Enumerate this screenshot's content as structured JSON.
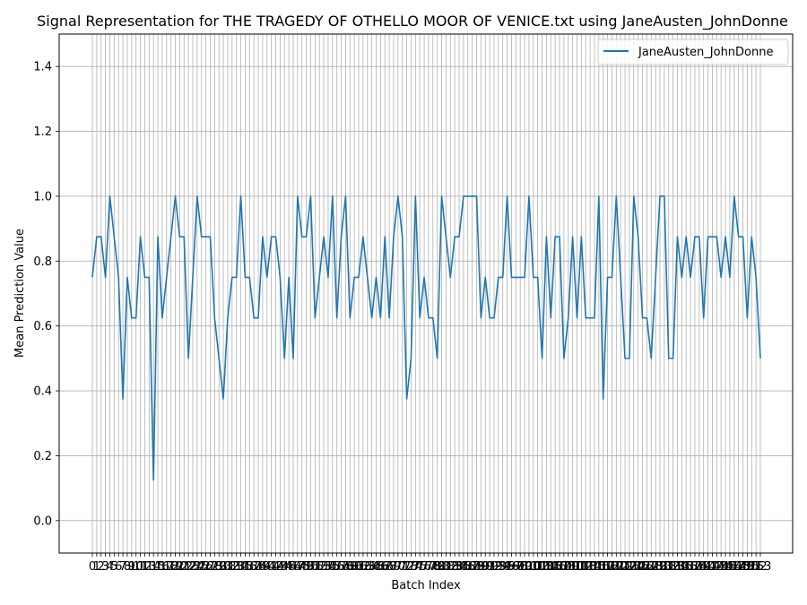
{
  "chart_data": {
    "type": "line",
    "title": "Signal Representation for THE TRAGEDY OF OTHELLO MOOR OF VENICE.txt using JaneAusten_JohnDonne",
    "xlabel": "Batch Index",
    "ylabel": "Mean Prediction Value",
    "ylim": [
      -0.1,
      1.5
    ],
    "yticks": [
      0.0,
      0.2,
      0.4,
      0.6,
      0.8,
      1.0,
      1.2,
      1.4
    ],
    "grid": true,
    "legend_position": "top-right",
    "series": [
      {
        "name": "JaneAusten_JohnDonne",
        "color": "#1f77b4",
        "values": [
          0.75,
          0.875,
          0.875,
          0.75,
          1.0,
          0.875,
          0.75,
          0.375,
          0.75,
          0.625,
          0.625,
          0.875,
          0.75,
          0.75,
          0.125,
          0.875,
          0.625,
          0.75,
          0.875,
          1.0,
          0.875,
          0.875,
          0.5,
          0.75,
          1.0,
          0.875,
          0.875,
          0.875,
          0.625,
          0.5,
          0.375,
          0.625,
          0.75,
          0.75,
          1.0,
          0.75,
          0.75,
          0.625,
          0.625,
          0.875,
          0.75,
          0.875,
          0.875,
          0.75,
          0.5,
          0.75,
          0.5,
          1.0,
          0.875,
          0.875,
          1.0,
          0.625,
          0.75,
          0.875,
          0.75,
          1.0,
          0.625,
          0.875,
          1.0,
          0.625,
          0.75,
          0.75,
          0.875,
          0.75,
          0.625,
          0.75,
          0.625,
          0.875,
          0.625,
          0.875,
          1.0,
          0.875,
          0.375,
          0.5,
          1.0,
          0.625,
          0.75,
          0.625,
          0.625,
          0.5,
          1.0,
          0.875,
          0.75,
          0.875,
          0.875,
          1.0,
          1.0,
          1.0,
          1.0,
          0.625,
          0.75,
          0.625,
          0.625,
          0.75,
          0.75,
          1.0,
          0.75,
          0.75,
          0.75,
          0.75,
          1.0,
          0.75,
          0.75,
          0.5,
          0.875,
          0.625,
          0.875,
          0.875,
          0.5,
          0.625,
          0.875,
          0.625,
          0.875,
          0.625,
          0.625,
          0.625,
          1.0,
          0.375,
          0.75,
          0.75,
          1.0,
          0.75,
          0.5,
          0.5,
          1.0,
          0.875,
          0.625,
          0.625,
          0.5,
          0.75,
          1.0,
          1.0,
          0.5,
          0.5,
          0.875,
          0.75,
          0.875,
          0.75,
          0.875,
          0.875,
          0.625,
          0.875,
          0.875,
          0.875,
          0.75,
          0.875,
          0.75,
          1.0,
          0.875,
          0.875,
          0.625,
          0.875,
          0.75,
          0.5
        ]
      }
    ]
  }
}
